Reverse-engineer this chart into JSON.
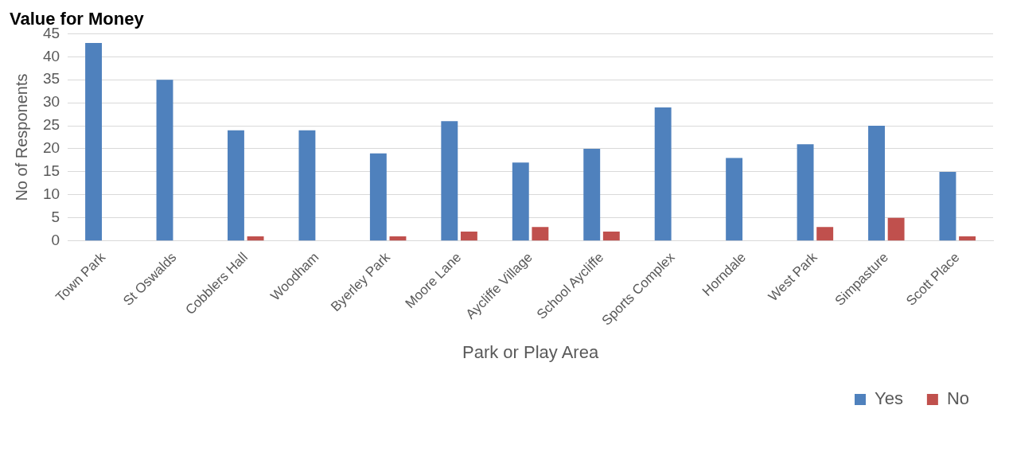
{
  "chart_data": {
    "type": "bar",
    "title": "Value for Money",
    "xlabel": "Park or Play Area",
    "ylabel": "No of Responents",
    "categories": [
      "Town Park",
      "St Oswalds",
      "Cobblers Hall",
      "Woodham",
      "Byerley Park",
      "Moore Lane",
      "Aycliffe Village",
      "School Aycliffe",
      "Sports Complex",
      "Horndale",
      "West Park",
      "Simpasture",
      "Scott Place"
    ],
    "series": [
      {
        "name": "Yes",
        "color": "#4f81bd",
        "values": [
          43,
          35,
          24,
          24,
          19,
          26,
          17,
          20,
          29,
          18,
          21,
          25,
          15
        ]
      },
      {
        "name": "No",
        "color": "#c0504d",
        "values": [
          0,
          0,
          1,
          0,
          1,
          2,
          3,
          2,
          0,
          0,
          3,
          5,
          1
        ]
      }
    ],
    "ylim": [
      0,
      45
    ],
    "yticks": [
      0,
      5,
      10,
      15,
      20,
      25,
      30,
      35,
      40,
      45
    ],
    "grid": "y",
    "legend": "bottom"
  }
}
